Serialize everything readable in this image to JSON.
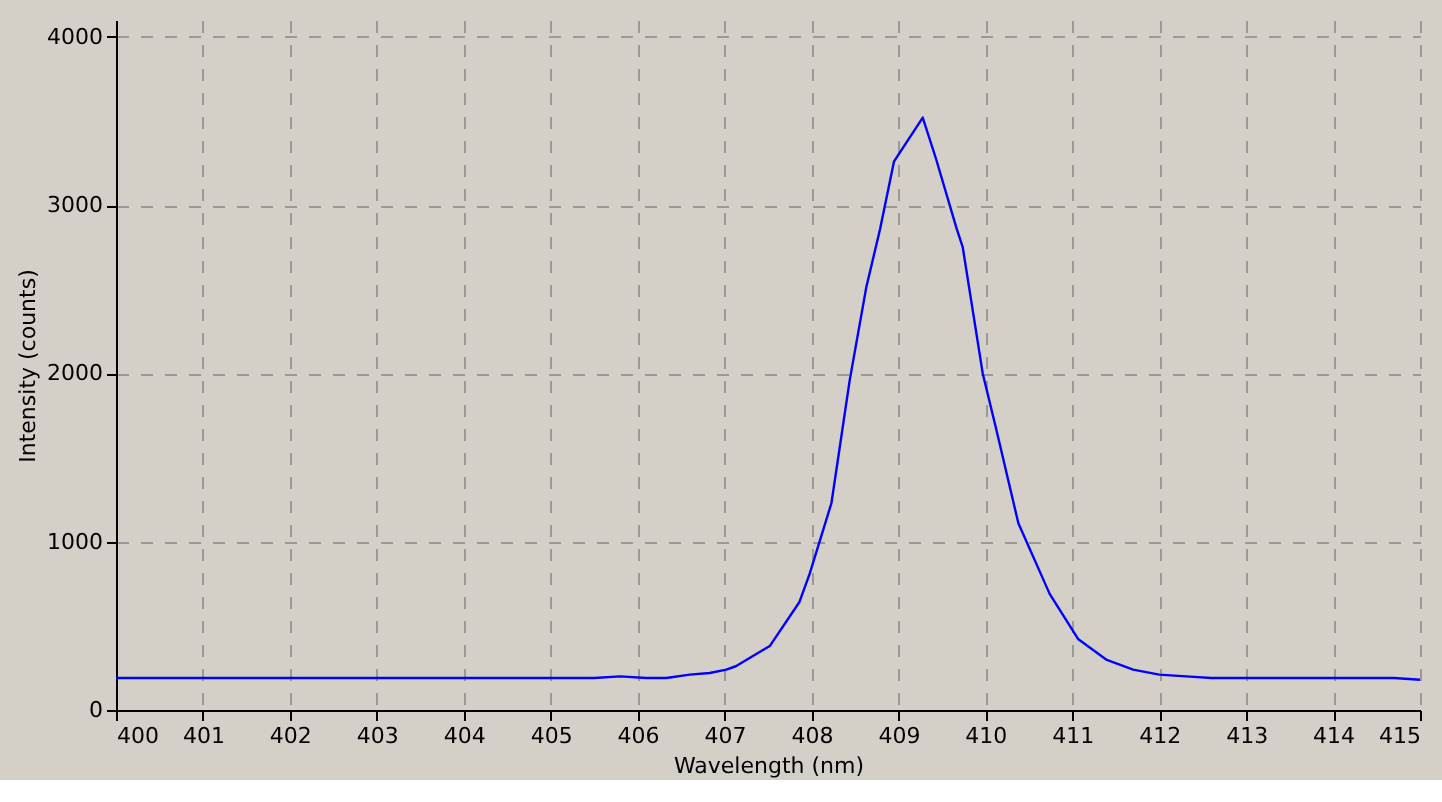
{
  "chart_data": {
    "type": "line",
    "xlabel": "Wavelength (nm)",
    "ylabel": "Intensity (counts)",
    "x": [
      400,
      405.5,
      405.8,
      406.1,
      406.33,
      406.6,
      406.83,
      407.02,
      407.13,
      407.52,
      407.86,
      407.98,
      408.23,
      408.44,
      408.63,
      408.79,
      408.95,
      409.28,
      409.43,
      409.67,
      409.74,
      409.97,
      410.12,
      410.38,
      410.74,
      411.07,
      411.39,
      411.7,
      412.0,
      412.31,
      412.6,
      414.7,
      415
    ],
    "series": [
      {
        "color": "#0000ff",
        "values": [
          190,
          190,
          200,
          190,
          190,
          210,
          220,
          240,
          260,
          380,
          640,
          810,
          1230,
          1960,
          2510,
          2860,
          3260,
          3520,
          3280,
          2860,
          2750,
          2000,
          1680,
          1110,
          690,
          420,
          300,
          240,
          210,
          200,
          190,
          190,
          180
        ]
      }
    ],
    "xlim": [
      400,
      415
    ],
    "xticks": [
      400,
      401,
      402,
      403,
      404,
      405,
      406,
      407,
      408,
      409,
      410,
      411,
      412,
      413,
      414,
      415
    ],
    "ylim": [
      0,
      4100
    ],
    "yticks": [
      0,
      1000,
      2000,
      3000,
      4000
    ],
    "grid": true,
    "legend": false,
    "marker": "none",
    "line_style": "solid"
  }
}
